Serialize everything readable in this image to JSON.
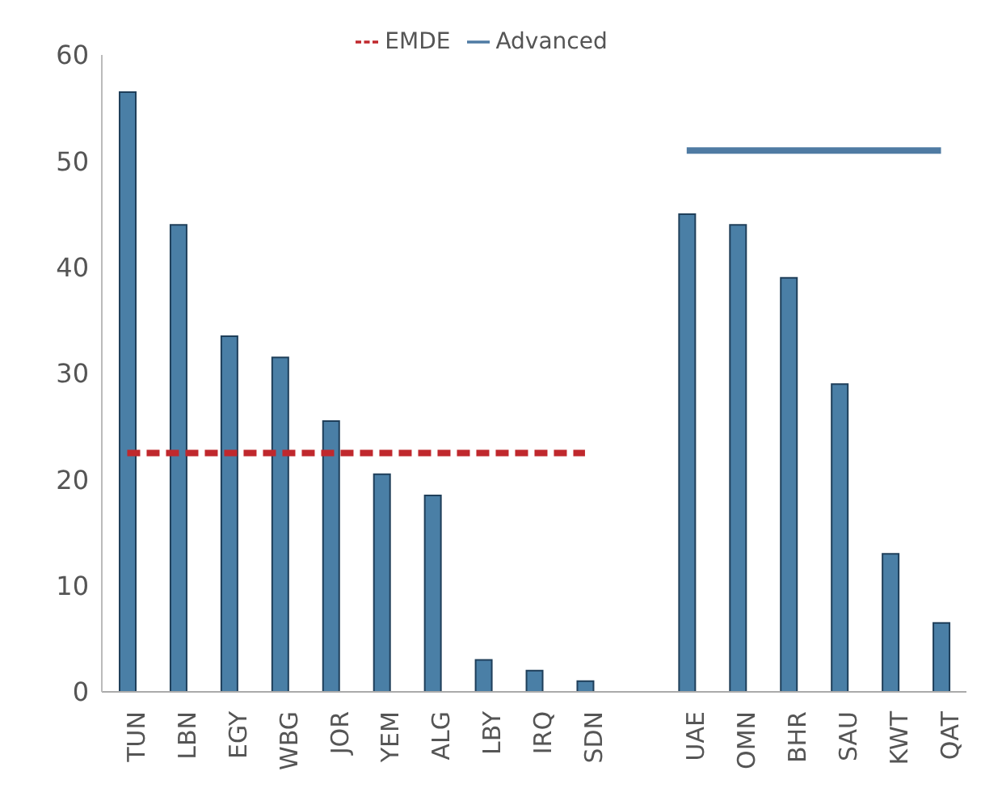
{
  "chart_data": {
    "type": "bar",
    "categories": [
      "TUN",
      "LBN",
      "EGY",
      "WBG",
      "JOR",
      "YEM",
      "ALG",
      "LBY",
      "IRQ",
      "SDN",
      null,
      "UAE",
      "OMN",
      "BHR",
      "SAU",
      "KWT",
      "QAT"
    ],
    "series": [
      {
        "color": "#4a7fa6",
        "values": [
          56.5,
          44,
          33.5,
          31.5,
          25.5,
          20.5,
          18.5,
          3,
          2,
          1,
          null,
          45,
          44,
          39,
          29,
          13,
          6.5
        ]
      },
      {
        "type": "line",
        "name": "EMDE",
        "color": "#c0282d",
        "line_style": "dashed",
        "values": [
          22.5,
          22.5,
          22.5,
          22.5,
          22.5,
          22.5,
          22.5,
          22.5,
          22.5,
          22.5,
          null,
          null,
          null,
          null,
          null,
          null,
          null
        ]
      },
      {
        "type": "line",
        "name": "Advanced",
        "color": "#4f7ba3",
        "line_style": "solid",
        "values": [
          null,
          null,
          null,
          null,
          null,
          null,
          null,
          null,
          null,
          null,
          null,
          51,
          51,
          51,
          51,
          51,
          51
        ]
      }
    ],
    "ylim": [
      0,
      60
    ],
    "yticks": [
      0,
      10,
      20,
      30,
      40,
      50,
      60
    ],
    "grid": false,
    "legend": "top",
    "marker": "none"
  }
}
